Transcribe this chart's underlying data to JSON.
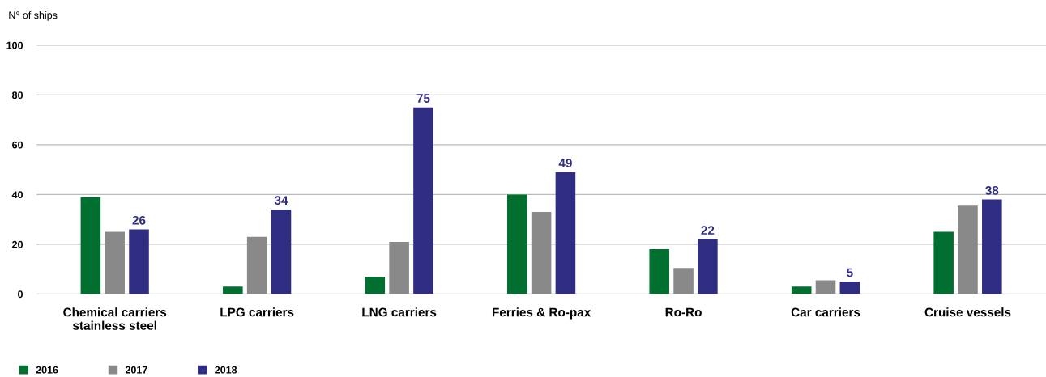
{
  "chart_data": {
    "type": "bar",
    "ylabel": "N° of ships",
    "categories": [
      "Chemical carriers\nstainless steel",
      "LPG carriers",
      "LNG carriers",
      "Ferries & Ro-pax",
      "Ro-Ro",
      "Car carriers",
      "Cruise vessels"
    ],
    "series": [
      {
        "name": "2016",
        "color": "#006f2f",
        "values": [
          39,
          3,
          7,
          40,
          18,
          3,
          25
        ]
      },
      {
        "name": "2017",
        "color": "#898989",
        "values": [
          25,
          23,
          21,
          33,
          10.5,
          5.5,
          35.5
        ]
      },
      {
        "name": "2018",
        "color": "#2e2d82",
        "values": [
          26,
          34,
          75,
          49,
          22,
          5,
          38
        ],
        "data_labels": true
      }
    ],
    "ylim": [
      0,
      100
    ],
    "yticks": [
      0,
      20,
      40,
      60,
      80,
      100
    ],
    "grid": "y",
    "legend": "bottom left"
  }
}
